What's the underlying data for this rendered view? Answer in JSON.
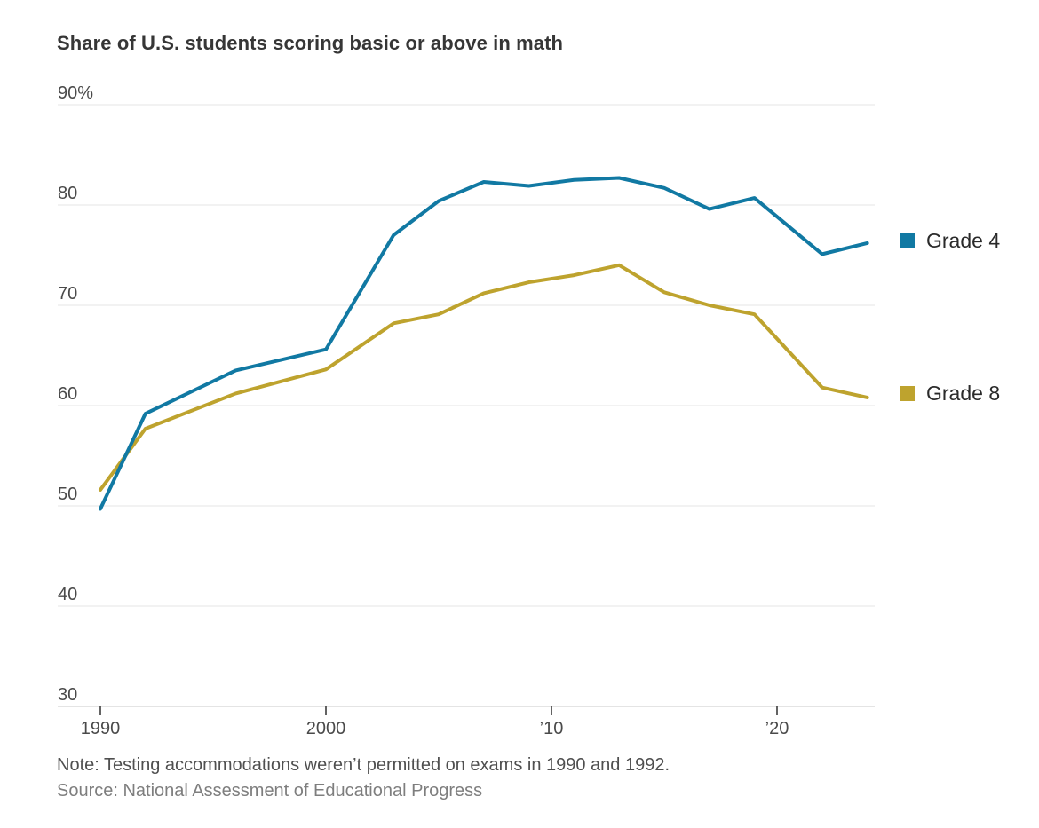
{
  "page": {
    "background": "#ffffff"
  },
  "header": {
    "title": "Share of U.S. students scoring basic or above in math"
  },
  "chart_data": {
    "type": "line",
    "title": "Share of U.S. students scoring basic or above in math",
    "xlabel": "",
    "ylabel": "",
    "x": [
      1990,
      1992,
      1996,
      2000,
      2003,
      2005,
      2007,
      2009,
      2011,
      2013,
      2015,
      2017,
      2019,
      2022,
      2024
    ],
    "series": [
      {
        "name": "Grade 4",
        "color": "#1179a3",
        "values": [
          49.7,
          59.2,
          63.5,
          65.6,
          77.0,
          80.4,
          82.3,
          81.9,
          82.5,
          82.7,
          81.7,
          79.6,
          80.7,
          75.1,
          76.2
        ]
      },
      {
        "name": "Grade 8",
        "color": "#bea32e",
        "values": [
          51.6,
          57.7,
          61.2,
          63.6,
          68.2,
          69.1,
          71.2,
          72.3,
          73.0,
          74.0,
          71.3,
          70.0,
          69.1,
          61.8,
          60.8
        ]
      }
    ],
    "ylim": [
      30,
      90
    ],
    "xlim": [
      1990,
      2024
    ],
    "yticks": [
      {
        "value": 90,
        "label": "90%"
      },
      {
        "value": 80,
        "label": "80"
      },
      {
        "value": 70,
        "label": "70"
      },
      {
        "value": 60,
        "label": "60"
      },
      {
        "value": 50,
        "label": "50"
      },
      {
        "value": 40,
        "label": "40"
      },
      {
        "value": 30,
        "label": "30"
      }
    ],
    "xticks": [
      {
        "value": 1990,
        "label": "1990"
      },
      {
        "value": 2000,
        "label": "2000"
      },
      {
        "value": 2010,
        "label": "’10"
      },
      {
        "value": 2020,
        "label": "’20"
      }
    ],
    "grid": "horizontal",
    "gridline_color": "#e4e4e4",
    "axis_line_color": "#c9c9c9",
    "tick_color": "#3c3c3c",
    "legend_position": "right"
  },
  "legend": {
    "items": [
      {
        "label": "Grade 4",
        "color": "#1179a3"
      },
      {
        "label": "Grade 8",
        "color": "#bea32e"
      }
    ]
  },
  "footer": {
    "note": "Note: Testing accommodations weren’t permitted on exams in 1990 and 1992.",
    "source": "Source: National Assessment of Educational Progress"
  }
}
